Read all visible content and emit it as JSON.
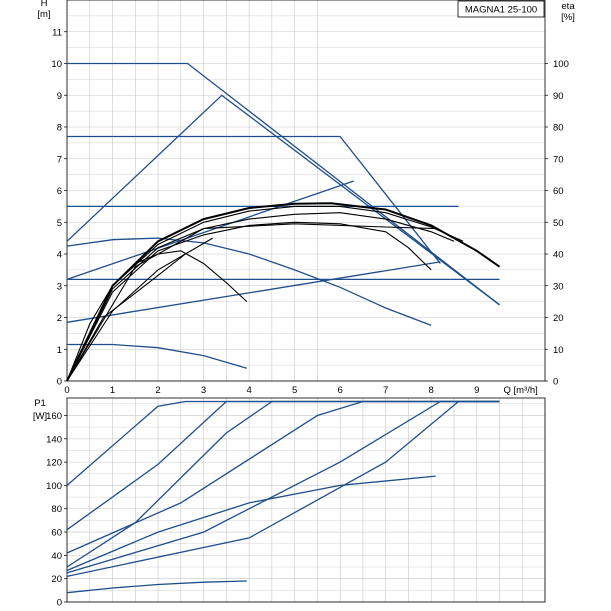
{
  "title_box": "MAGNA1 25-100",
  "colors": {
    "curve_blue": "#1f4e8c",
    "curve_black": "#000000",
    "grid": "#c8c8c8",
    "axis": "#000000"
  },
  "chart_data": [
    {
      "type": "line",
      "name_box": "MAGNA1 25-100",
      "x_axis": {
        "label": "Q [m³/h]",
        "ticks": [
          0,
          1,
          2,
          3,
          4,
          5,
          6,
          7,
          8,
          9
        ],
        "range": [
          0,
          10.5
        ]
      },
      "y_axis_left": {
        "label_top": "H",
        "label_unit": "[m]",
        "ticks": [
          0,
          1,
          2,
          3,
          4,
          5,
          6,
          7,
          8,
          9,
          10,
          11
        ],
        "range": [
          0,
          12
        ]
      },
      "y_axis_right": {
        "label_top": "eta",
        "label_unit": "[%]",
        "ticks": [
          0,
          10,
          20,
          30,
          40,
          50,
          60,
          70,
          80,
          90,
          100
        ],
        "range": [
          0,
          120
        ]
      },
      "grid": true,
      "head_curves_blue": [
        {
          "x": [
            0,
            2.65,
            9.5
          ],
          "y": [
            10,
            10,
            2.4
          ]
        },
        {
          "x": [
            0,
            6.0,
            8.2
          ],
          "y": [
            7.7,
            7.7,
            3.7
          ]
        },
        {
          "x": [
            0,
            8.6
          ],
          "y": [
            5.5,
            5.5
          ]
        },
        {
          "x": [
            0,
            9.5
          ],
          "y": [
            3.2,
            3.2
          ]
        },
        {
          "x": [
            0,
            3.4,
            9.5
          ],
          "y": [
            4.4,
            9.0,
            2.4
          ]
        },
        {
          "x": [
            0,
            6.3
          ],
          "y": [
            3.2,
            6.3
          ]
        },
        {
          "x": [
            0,
            8.2
          ],
          "y": [
            1.85,
            3.75
          ]
        },
        {
          "x": [
            0,
            1,
            2,
            3,
            4,
            5,
            6,
            7,
            8
          ],
          "y": [
            4.25,
            4.45,
            4.5,
            4.35,
            4.0,
            3.5,
            2.95,
            2.3,
            1.75
          ]
        },
        {
          "x": [
            0,
            1,
            2,
            3,
            3.95
          ],
          "y": [
            1.15,
            1.15,
            1.05,
            0.8,
            0.4
          ]
        }
      ],
      "eta_curves_black": [
        {
          "x": [
            0,
            0.5,
            1,
            1.5,
            2,
            2.5,
            3,
            3.5,
            3.95
          ],
          "y": [
            0,
            18,
            30,
            37,
            40,
            41,
            37,
            31,
            25
          ]
        },
        {
          "x": [
            0,
            1,
            2,
            3,
            4,
            5,
            6,
            7,
            7.5,
            8
          ],
          "y": [
            0,
            28,
            41,
            46,
            49,
            50,
            49.5,
            47,
            42,
            35
          ]
        },
        {
          "x": [
            0,
            1,
            2,
            3,
            4,
            5,
            6,
            7,
            8,
            8.5
          ],
          "y": [
            0,
            29,
            42,
            48,
            51,
            52.5,
            53,
            51,
            47,
            44
          ]
        },
        {
          "x": [
            0,
            1,
            2,
            3,
            4,
            5,
            6,
            7,
            8,
            8.7
          ],
          "y": [
            0,
            30,
            43,
            50,
            53.5,
            55,
            55,
            53,
            48.5,
            44
          ]
        },
        {
          "x": [
            0,
            1,
            2,
            3,
            4,
            5,
            5.8,
            7,
            8,
            9,
            9.5
          ],
          "y": [
            0,
            30,
            44,
            51,
            54.5,
            55.8,
            56,
            54,
            49,
            41,
            36
          ]
        },
        {
          "x": [
            0,
            0.8,
            1.8,
            2.6
          ],
          "y": [
            0,
            20,
            31,
            40
          ]
        },
        {
          "x": [
            0,
            1.0,
            2.0,
            3.2
          ],
          "y": [
            0,
            22,
            35,
            45
          ]
        },
        {
          "x": [
            0,
            1.5,
            3.0,
            5.0,
            7.0,
            8.1
          ],
          "y": [
            0,
            36,
            48,
            49.5,
            48.5,
            48
          ]
        }
      ]
    },
    {
      "type": "line",
      "x_axis": {
        "ticks": [
          0,
          1,
          2,
          3,
          4,
          5,
          6,
          7,
          8,
          9
        ],
        "range": [
          0,
          10.5
        ]
      },
      "y_axis_left": {
        "label_top": "P1",
        "label_unit": "[W]",
        "ticks": [
          0,
          20,
          40,
          60,
          80,
          100,
          120,
          140,
          160
        ],
        "range": [
          0,
          175
        ]
      },
      "grid": true,
      "power_curves_blue": [
        {
          "x": [
            0,
            2.0,
            2.6,
            9.5
          ],
          "y": [
            100,
            168,
            172,
            172
          ]
        },
        {
          "x": [
            0,
            2.0,
            3.5,
            9.5
          ],
          "y": [
            62,
            118,
            172,
            172
          ]
        },
        {
          "x": [
            0,
            1.5,
            3.5,
            4.5,
            9.5
          ],
          "y": [
            30,
            68,
            145,
            172,
            172
          ]
        },
        {
          "x": [
            0,
            2.5,
            5.5,
            6.5,
            9.5
          ],
          "y": [
            42,
            85,
            160,
            172,
            172
          ]
        },
        {
          "x": [
            0,
            3,
            6,
            8.2,
            9.5
          ],
          "y": [
            25,
            60,
            120,
            172,
            172
          ]
        },
        {
          "x": [
            0,
            4,
            7,
            8.6,
            9.5
          ],
          "y": [
            22,
            55,
            120,
            172,
            172
          ]
        },
        {
          "x": [
            0,
            2,
            4,
            6,
            8.1
          ],
          "y": [
            27,
            60,
            85,
            100,
            108
          ]
        },
        {
          "x": [
            0,
            1,
            2,
            3,
            3.95
          ],
          "y": [
            8,
            12,
            15,
            17,
            18
          ]
        }
      ]
    }
  ]
}
